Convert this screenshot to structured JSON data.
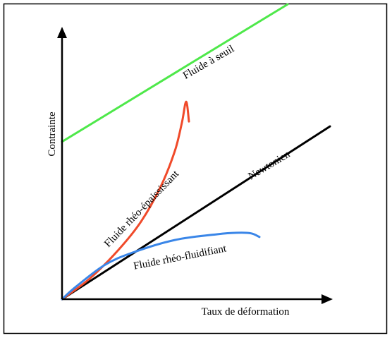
{
  "chart_data": {
    "type": "line",
    "title": "",
    "xlabel": "Taux de déformation",
    "ylabel": "Contrainte",
    "xlim": [
      0,
      100
    ],
    "ylim": [
      0,
      100
    ],
    "grid": false,
    "legend": "none (curves labelled inline)",
    "series": [
      {
        "name": "Fluide à seuil",
        "color": "#4ee84a",
        "x": [
          0,
          80
        ],
        "y": [
          52.4,
          98.1
        ]
      },
      {
        "name": "Newtonien",
        "color": "#000000",
        "x": [
          0,
          95
        ],
        "y": [
          0,
          57.5
        ]
      },
      {
        "name": "Fluide rhéo-épaississant",
        "color": "#f04a2a",
        "x": [
          0,
          10,
          20,
          28,
          35,
          40,
          42.5,
          44,
          45
        ],
        "y": [
          0,
          7,
          16.4,
          25.8,
          37.5,
          49.3,
          58.7,
          65.7,
          59.1
        ]
      },
      {
        "name": "Fluide rhéo-fluidifiant",
        "color": "#3a86e8",
        "x": [
          0,
          5,
          15,
          25,
          40,
          55,
          62,
          67,
          70
        ],
        "y": [
          0,
          4.2,
          11.3,
          15.5,
          19.7,
          21.6,
          22.1,
          21.9,
          20.7
        ]
      }
    ]
  }
}
